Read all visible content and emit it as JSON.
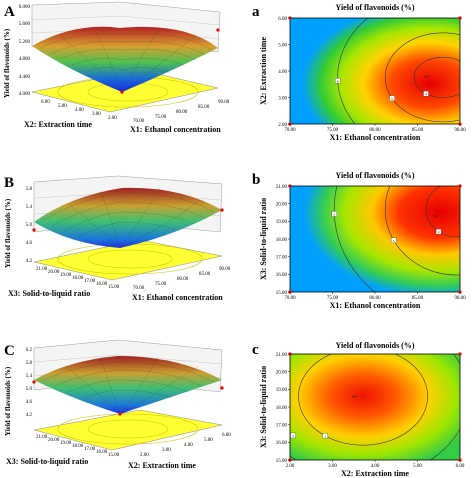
{
  "panels": [
    {
      "letter": "A",
      "ylabel": "Yield of flavonoids (%)",
      "ax1_label": "X2: Extraction time",
      "ax2_label": "X1: Ethanol concentration",
      "zticks": [
        "6.000",
        "5.600",
        "5.200",
        "4.800",
        "4.400",
        "4.000"
      ],
      "ax1_ticks": [
        "6.00",
        "5.00",
        "4.00",
        "3.00",
        "2.00"
      ],
      "ax2_ticks": [
        "70.00",
        "75.00",
        "80.00",
        "85.00",
        "90.00"
      ]
    },
    {
      "letter": "B",
      "ylabel": "Yield of flavonoids (%)",
      "ax1_label": "X3: Solid-to-liquid ratio",
      "ax2_label": "X1: Ethanol concentration",
      "zticks": [
        "5.8",
        "5.4",
        "5.0",
        "4.6",
        "4.2"
      ],
      "ax1_ticks": [
        "21.00",
        "20.00",
        "19.00",
        "18.00",
        "17.00",
        "16.00",
        "15.00"
      ],
      "ax2_ticks": [
        "70.00",
        "75.00",
        "80.00",
        "85.00",
        "90.00"
      ]
    },
    {
      "letter": "C",
      "ylabel": "Yield of flavonoids (%)",
      "ax1_label": "X3: Solid-to-liquid ratio",
      "ax2_label": "X2: Extraction time",
      "zticks": [
        "6.2",
        "5.8",
        "5.4",
        "5.0",
        "4.6",
        "4.2"
      ],
      "ax1_ticks": [
        "21.00",
        "20.00",
        "19.00",
        "18.00",
        "17.00",
        "16.00",
        "15.00"
      ],
      "ax2_ticks": [
        "2.00",
        "3.00",
        "4.00",
        "5.00",
        "6.00"
      ]
    }
  ],
  "chart_data": [
    {
      "type": "surface",
      "panel": "A",
      "title": "",
      "z_label": "Yield of flavonoids (%)",
      "x_label": "X1: Ethanol concentration",
      "y_label": "X2: Extraction time",
      "x_range": [
        70,
        90
      ],
      "y_range": [
        2,
        6
      ],
      "z_range": [
        4.0,
        6.0
      ]
    },
    {
      "type": "contour",
      "panel": "a",
      "title": "Yield of flavonoids (%)",
      "xlabel": "X1: Ethanol concentration",
      "ylabel": "X2: Extraction time",
      "xlim": [
        70,
        90
      ],
      "ylim": [
        2,
        6
      ],
      "xticks": [
        "70.00",
        "75.00",
        "80.00",
        "85.00",
        "90.00"
      ],
      "yticks": [
        "2.00",
        "3.00",
        "4.00",
        "5.00",
        "6.00"
      ],
      "contour_labels": [
        "4",
        "5",
        "6"
      ],
      "center_label": "6.0",
      "optimum": {
        "x": 87,
        "y": 3.8
      }
    },
    {
      "type": "surface",
      "panel": "B",
      "title": "",
      "z_label": "Yield of flavonoids (%)",
      "x_label": "X1: Ethanol concentration",
      "y_label": "X3: Solid-to-liquid ratio",
      "x_range": [
        70,
        90
      ],
      "y_range": [
        15,
        21
      ],
      "z_range": [
        4.2,
        5.8
      ]
    },
    {
      "type": "contour",
      "panel": "b",
      "title": "Yield of flavonoids (%)",
      "xlabel": "X1: Ethanol concentration",
      "ylabel": "X3: Solid-to-liquid ratio",
      "xlim": [
        70,
        90
      ],
      "ylim": [
        15,
        21
      ],
      "xticks": [
        "70.00",
        "75.00",
        "80.00",
        "85.00",
        "90.00"
      ],
      "yticks": [
        "15.00",
        "16.00",
        "17.00",
        "18.00",
        "19.00",
        "20.00",
        "21.00"
      ],
      "contour_labels": [
        "4",
        "5",
        "5"
      ],
      "center_label": "5.8",
      "optimum": {
        "x": 88,
        "y": 19.3
      }
    },
    {
      "type": "surface",
      "panel": "C",
      "title": "",
      "z_label": "Yield of flavonoids (%)",
      "x_label": "X2: Extraction time",
      "y_label": "X3: Solid-to-liquid ratio",
      "x_range": [
        2,
        6
      ],
      "y_range": [
        15,
        21
      ],
      "z_range": [
        4.2,
        6.2
      ]
    },
    {
      "type": "contour",
      "panel": "c",
      "title": "Yield of flavonoids (%)",
      "xlabel": "X2: Extraction time",
      "ylabel": "X3: Solid-to-liquid ratio",
      "xlim": [
        2,
        6
      ],
      "ylim": [
        15,
        21
      ],
      "xticks": [
        "2.00",
        "3.00",
        "4.00",
        "5.00",
        "6.00"
      ],
      "yticks": [
        "15.00",
        "16.00",
        "17.00",
        "18.00",
        "19.00",
        "20.00",
        "21.00"
      ],
      "contour_labels": [
        "5",
        "5"
      ],
      "center_label": "6.0",
      "optimum": {
        "x": 3.7,
        "y": 18.6
      }
    }
  ]
}
